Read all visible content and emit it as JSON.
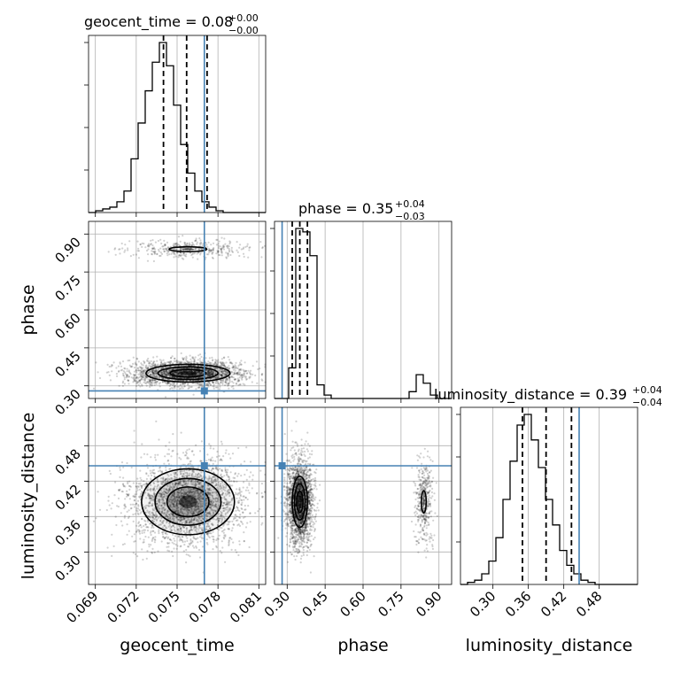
{
  "chart_data": {
    "type": "corner",
    "parameters": [
      {
        "name": "geocent_time",
        "xlabel": "geocent_time",
        "title": "geocent_time = 0.08",
        "title_plus": "+0.00",
        "title_minus": "−0.00",
        "range": [
          0.0685,
          0.0815
        ],
        "ticks": [
          "0.069",
          "0.072",
          "0.075",
          "0.078",
          "0.081"
        ],
        "tick_values": [
          0.069,
          0.072,
          0.075,
          0.078,
          0.081
        ],
        "truth": 0.077,
        "quantiles": [
          0.074,
          0.0757,
          0.0772
        ],
        "hist_edges_start": 0.0685,
        "hist_bin_width": 0.00052,
        "hist_counts": [
          0,
          1,
          2,
          3,
          6,
          12,
          30,
          50,
          68,
          84,
          95,
          82,
          60,
          38,
          22,
          12,
          6,
          3,
          1,
          0,
          0,
          0,
          0,
          0,
          0
        ]
      },
      {
        "name": "phase",
        "xlabel": "phase",
        "ylabel": "phase",
        "title": "phase = 0.35",
        "title_plus": "+0.04",
        "title_minus": "−0.03",
        "range": [
          0.25,
          0.95
        ],
        "ticks": [
          "0.30",
          "0.45",
          "0.60",
          "0.75",
          "0.90"
        ],
        "tick_values": [
          0.3,
          0.45,
          0.6,
          0.75,
          0.9
        ],
        "truth": 0.28,
        "quantiles": [
          0.32,
          0.35,
          0.38
        ],
        "hist_edges_start": 0.25,
        "hist_bin_width": 0.028,
        "hist_counts": [
          0,
          0,
          18,
          100,
          98,
          84,
          8,
          2,
          0,
          0,
          0,
          0,
          0,
          0,
          0,
          0,
          0,
          0,
          0,
          4,
          14,
          9,
          2,
          0,
          0
        ]
      },
      {
        "name": "luminosity_distance",
        "xlabel": "luminosity_distance",
        "ylabel": "luminosity_distance",
        "title": "luminosity_distance = 0.39",
        "title_plus": "+0.04",
        "title_minus": "−0.04",
        "range": [
          0.245,
          0.545
        ],
        "ticks": [
          "0.30",
          "0.36",
          "0.42",
          "0.48"
        ],
        "tick_values": [
          0.3,
          0.36,
          0.42,
          0.48
        ],
        "truth": 0.446,
        "quantiles": [
          0.35,
          0.39,
          0.433
        ],
        "hist_edges_start": 0.245,
        "hist_bin_width": 0.012,
        "hist_counts": [
          0,
          1,
          2,
          5,
          11,
          22,
          40,
          58,
          75,
          80,
          68,
          55,
          40,
          28,
          16,
          9,
          5,
          2,
          1,
          0,
          0,
          0,
          0,
          0,
          0
        ]
      }
    ],
    "modes_2d": {
      "phase": [
        0.35,
        0.84
      ],
      "phase_weights": [
        0.85,
        0.15
      ],
      "phase_sigma": [
        0.025,
        0.018
      ],
      "geocent_time_center": 0.0758,
      "geocent_time_sigma": 0.0022,
      "luminosity_distance_center": 0.385,
      "luminosity_distance_sigma": 0.036
    },
    "contour_levels": "filled 2D density with contour lines",
    "grid": true,
    "colors": {
      "truth": "#4682b4",
      "hist": "#000000",
      "quantile": "#000000",
      "density": "#000000"
    }
  }
}
